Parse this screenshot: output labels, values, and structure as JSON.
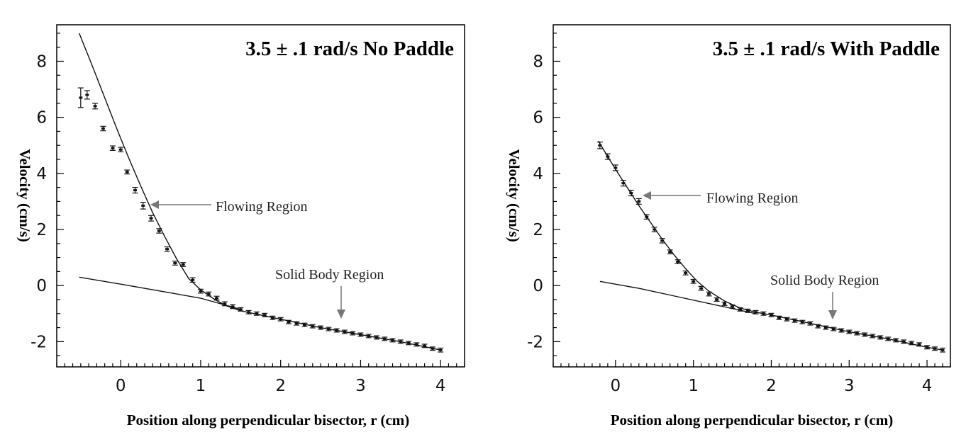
{
  "chart_data": [
    {
      "type": "scatter",
      "title": "3.5 ± .1 rad/s No Paddle",
      "xlabel": "Position along perpendicular bisector, r (cm)",
      "ylabel": "Velocity (cm/s)",
      "xlim": [
        -0.8,
        4.3
      ],
      "ylim": [
        -2.9,
        9.3
      ],
      "xticks": [
        0,
        1,
        2,
        3,
        4
      ],
      "yticks": [
        -2,
        0,
        2,
        4,
        6,
        8
      ],
      "grid": false,
      "series": [
        {
          "marker": "points-with-error-bars",
          "x": [
            -0.5,
            -0.42,
            -0.32,
            -0.22,
            -0.1,
            0.0,
            0.08,
            0.18,
            0.28,
            0.38,
            0.48,
            0.58,
            0.68,
            0.78,
            0.9,
            1.0,
            1.1,
            1.2,
            1.3,
            1.4,
            1.5,
            1.6,
            1.7,
            1.8,
            1.9,
            2.0,
            2.1,
            2.2,
            2.3,
            2.4,
            2.5,
            2.6,
            2.7,
            2.8,
            2.9,
            3.0,
            3.1,
            3.2,
            3.3,
            3.4,
            3.5,
            3.6,
            3.7,
            3.8,
            3.9,
            4.0
          ],
          "y": [
            6.7,
            6.8,
            6.4,
            5.6,
            4.9,
            4.85,
            4.05,
            3.4,
            2.85,
            2.4,
            1.95,
            1.3,
            0.8,
            0.75,
            0.2,
            -0.2,
            -0.3,
            -0.45,
            -0.65,
            -0.75,
            -0.85,
            -0.95,
            -1.0,
            -1.05,
            -1.15,
            -1.2,
            -1.3,
            -1.35,
            -1.4,
            -1.45,
            -1.5,
            -1.55,
            -1.6,
            -1.65,
            -1.7,
            -1.75,
            -1.8,
            -1.85,
            -1.9,
            -1.95,
            -2.0,
            -2.05,
            -2.1,
            -2.15,
            -2.25,
            -2.3
          ],
          "err": [
            0.35,
            0.15,
            0.1,
            0.08,
            0.08,
            0.08,
            0.07,
            0.1,
            0.12,
            0.1,
            0.08,
            0.08,
            0.07,
            0.07,
            0.08,
            0.07,
            0.07,
            0.07,
            0.07,
            0.07,
            0.06,
            0.06,
            0.06,
            0.06,
            0.06,
            0.06,
            0.06,
            0.06,
            0.06,
            0.06,
            0.06,
            0.06,
            0.06,
            0.06,
            0.06,
            0.06,
            0.06,
            0.06,
            0.06,
            0.06,
            0.06,
            0.06,
            0.06,
            0.06,
            0.06,
            0.07
          ]
        },
        {
          "marker": "line",
          "x": [
            -0.52,
            -0.35,
            -0.2,
            -0.05,
            0.1,
            0.25,
            0.4,
            0.55,
            0.7,
            0.85,
            1.0,
            1.15,
            1.3,
            1.5,
            1.7,
            2.0,
            2.5,
            3.0,
            3.5,
            4.0
          ],
          "y": [
            9.0,
            7.8,
            6.7,
            5.6,
            4.55,
            3.55,
            2.6,
            1.75,
            0.95,
            0.25,
            -0.15,
            -0.45,
            -0.7,
            -0.9,
            -1.02,
            -1.2,
            -1.5,
            -1.75,
            -2.0,
            -2.3
          ]
        },
        {
          "marker": "line",
          "x": [
            -0.52,
            0.0,
            0.5,
            1.0,
            1.5
          ],
          "y": [
            0.3,
            0.05,
            -0.2,
            -0.45,
            -0.85
          ]
        }
      ],
      "annotations": [
        {
          "text": "Flowing Region",
          "arrow_to": [
            0.35,
            2.85
          ]
        },
        {
          "text": "Solid Body Region",
          "arrow_to": [
            2.75,
            -1.15
          ]
        }
      ]
    },
    {
      "type": "scatter",
      "title": "3.5 ± .1 rad/s With Paddle",
      "xlabel": "Position along perpendicular bisector, r (cm)",
      "ylabel": "Velocity (cm/s)",
      "xlim": [
        -0.8,
        4.3
      ],
      "ylim": [
        -2.9,
        9.3
      ],
      "xticks": [
        0,
        1,
        2,
        3,
        4
      ],
      "yticks": [
        -2,
        0,
        2,
        4,
        6,
        8
      ],
      "grid": false,
      "series": [
        {
          "marker": "points-with-error-bars",
          "x": [
            -0.2,
            -0.1,
            0.0,
            0.1,
            0.2,
            0.3,
            0.4,
            0.5,
            0.6,
            0.7,
            0.8,
            0.9,
            1.0,
            1.1,
            1.2,
            1.3,
            1.4,
            1.5,
            1.6,
            1.7,
            1.8,
            1.9,
            2.0,
            2.1,
            2.2,
            2.3,
            2.4,
            2.5,
            2.6,
            2.7,
            2.8,
            2.9,
            3.0,
            3.1,
            3.2,
            3.3,
            3.4,
            3.5,
            3.6,
            3.7,
            3.8,
            3.9,
            4.0,
            4.1,
            4.2
          ],
          "y": [
            5.0,
            4.6,
            4.2,
            3.65,
            3.3,
            3.0,
            2.45,
            2.0,
            1.6,
            1.2,
            0.85,
            0.45,
            0.15,
            -0.1,
            -0.3,
            -0.5,
            -0.65,
            -0.75,
            -0.85,
            -0.9,
            -0.95,
            -1.0,
            -1.05,
            -1.15,
            -1.2,
            -1.25,
            -1.3,
            -1.35,
            -1.45,
            -1.5,
            -1.55,
            -1.6,
            -1.65,
            -1.7,
            -1.75,
            -1.8,
            -1.85,
            -1.9,
            -1.95,
            -2.0,
            -2.05,
            -2.1,
            -2.2,
            -2.25,
            -2.3
          ],
          "err": [
            0.12,
            0.1,
            0.1,
            0.1,
            0.1,
            0.1,
            0.08,
            0.08,
            0.08,
            0.07,
            0.07,
            0.07,
            0.07,
            0.07,
            0.07,
            0.06,
            0.06,
            0.06,
            0.06,
            0.06,
            0.06,
            0.06,
            0.06,
            0.06,
            0.06,
            0.06,
            0.06,
            0.06,
            0.06,
            0.06,
            0.06,
            0.06,
            0.06,
            0.06,
            0.06,
            0.06,
            0.06,
            0.06,
            0.06,
            0.06,
            0.06,
            0.06,
            0.06,
            0.06,
            0.07
          ]
        },
        {
          "marker": "line",
          "x": [
            -0.22,
            -0.1,
            0.0,
            0.15,
            0.3,
            0.45,
            0.6,
            0.75,
            0.9,
            1.05,
            1.2,
            1.4,
            1.6,
            1.8,
            2.0,
            2.5,
            3.0,
            3.5,
            4.0,
            4.2
          ],
          "y": [
            5.15,
            4.6,
            4.15,
            3.5,
            2.85,
            2.25,
            1.65,
            1.1,
            0.6,
            0.15,
            -0.2,
            -0.55,
            -0.8,
            -0.95,
            -1.05,
            -1.35,
            -1.65,
            -1.9,
            -2.2,
            -2.3
          ]
        },
        {
          "marker": "line",
          "x": [
            -0.2,
            0.3,
            0.8,
            1.3,
            1.8
          ],
          "y": [
            0.15,
            -0.1,
            -0.4,
            -0.7,
            -1.0
          ]
        }
      ],
      "annotations": [
        {
          "text": "Flowing Region",
          "arrow_to": [
            0.35,
            3.2
          ]
        },
        {
          "text": "Solid Body Region",
          "arrow_to": [
            2.8,
            -1.1
          ]
        }
      ]
    }
  ]
}
